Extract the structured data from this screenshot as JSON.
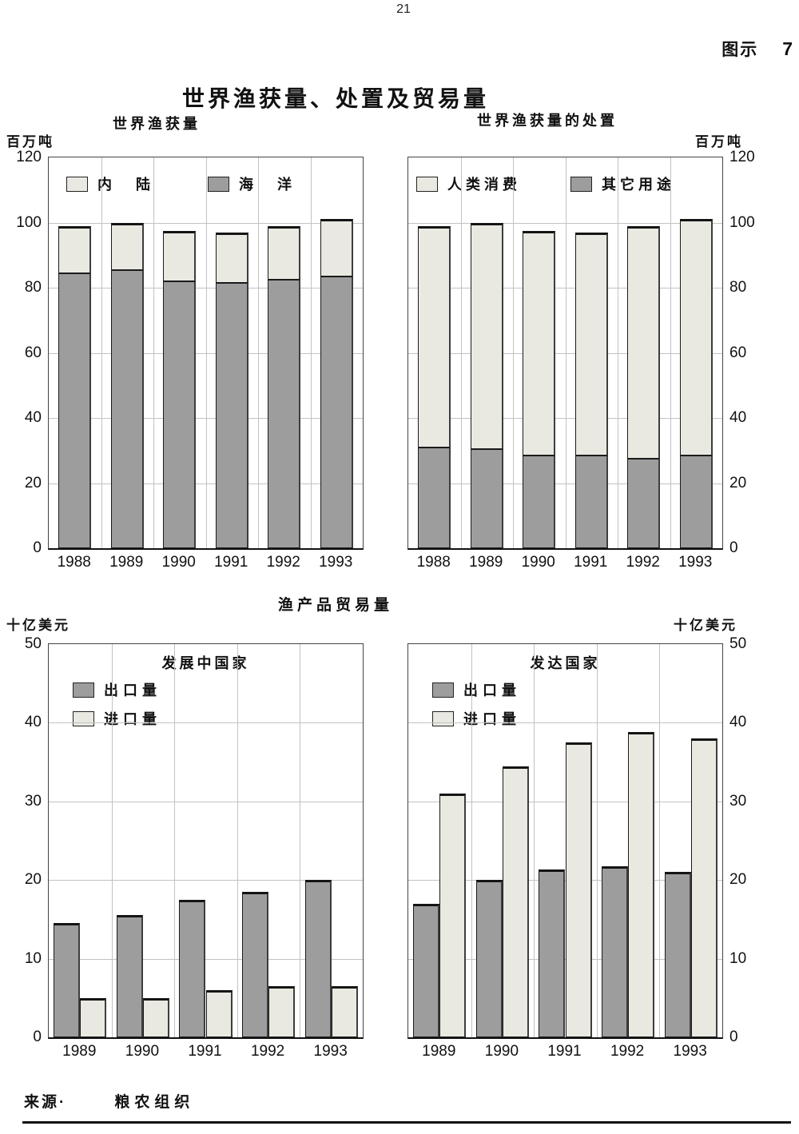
{
  "page": {
    "number": "21",
    "figure_label": "图示",
    "figure_number": "7",
    "title": "世界渔获量、处置及贸易量",
    "trade_section_title": "渔产品贸易量",
    "source_label": "来源·",
    "source_value": "粮农组织"
  },
  "colors": {
    "light": "#e9e9e2",
    "dark": "#9d9d9d",
    "grid": "#c2c2c2",
    "frame": "#444444"
  },
  "chart_data": [
    {
      "id": "catch",
      "type": "bar",
      "stacked": true,
      "title": "世界渔获量",
      "unit": "百万吨",
      "yticks_side": "left",
      "ylim": [
        0,
        120
      ],
      "ytick": 20,
      "grid": true,
      "categories": [
        "1988",
        "1989",
        "1990",
        "1991",
        "1992",
        "1993"
      ],
      "series": [
        {
          "name": "海洋",
          "color": "dark",
          "values": [
            84.5,
            85.5,
            82.0,
            81.5,
            82.5,
            83.5
          ]
        },
        {
          "name": "内陆",
          "color": "light",
          "values": [
            14.5,
            14.5,
            15.5,
            15.5,
            16.5,
            17.5
          ]
        }
      ],
      "legend": [
        {
          "label": "内陆",
          "color": "light"
        },
        {
          "label": "海洋",
          "color": "dark"
        }
      ]
    },
    {
      "id": "disposition",
      "type": "bar",
      "stacked": true,
      "title": "世界渔获量的处置",
      "unit": "百万吨",
      "yticks_side": "right",
      "ylim": [
        0,
        120
      ],
      "ytick": 20,
      "grid": true,
      "categories": [
        "1988",
        "1989",
        "1990",
        "1991",
        "1992",
        "1993"
      ],
      "series": [
        {
          "name": "其它用途",
          "color": "dark",
          "values": [
            31.0,
            30.5,
            28.5,
            28.5,
            27.5,
            28.5
          ]
        },
        {
          "name": "人类消费",
          "color": "light",
          "values": [
            68.0,
            69.5,
            69.0,
            68.5,
            71.5,
            72.5
          ]
        }
      ],
      "legend": [
        {
          "label": "人类消费",
          "color": "light"
        },
        {
          "label": "其它用途",
          "color": "dark"
        }
      ]
    },
    {
      "id": "developing",
      "type": "bar",
      "stacked": false,
      "title": "发展中国家",
      "unit": "十亿美元",
      "yticks_side": "left",
      "ylim": [
        0,
        50
      ],
      "ytick": 10,
      "grid": true,
      "categories": [
        "1989",
        "1990",
        "1991",
        "1992",
        "1993"
      ],
      "series": [
        {
          "name": "出口量",
          "color": "dark",
          "values": [
            14.5,
            15.5,
            17.5,
            18.5,
            20.0
          ]
        },
        {
          "name": "进口量",
          "color": "light",
          "values": [
            5.0,
            5.0,
            6.0,
            6.5,
            6.5
          ]
        }
      ],
      "legend": [
        {
          "label": "出口量",
          "color": "dark"
        },
        {
          "label": "进口量",
          "color": "light"
        }
      ]
    },
    {
      "id": "developed",
      "type": "bar",
      "stacked": false,
      "title": "发达国家",
      "unit": "十亿美元",
      "yticks_side": "right",
      "ylim": [
        0,
        50
      ],
      "ytick": 10,
      "grid": true,
      "categories": [
        "1989",
        "1990",
        "1991",
        "1992",
        "1993"
      ],
      "series": [
        {
          "name": "出口量",
          "color": "dark",
          "values": [
            17.0,
            20.0,
            21.3,
            21.8,
            21.0
          ]
        },
        {
          "name": "进口量",
          "color": "light",
          "values": [
            31.0,
            34.5,
            37.5,
            38.8,
            38.0
          ]
        }
      ],
      "legend": [
        {
          "label": "出口量",
          "color": "dark"
        },
        {
          "label": "进口量",
          "color": "light"
        }
      ]
    }
  ]
}
